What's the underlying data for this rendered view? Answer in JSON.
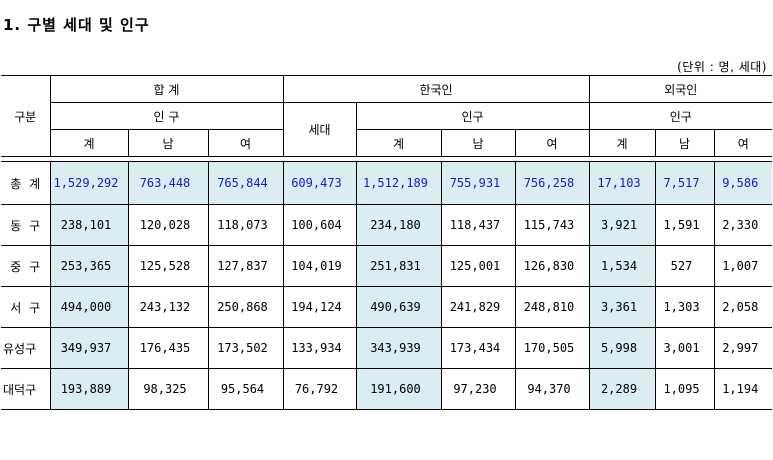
{
  "title": "1. 구별 세대 및 인구",
  "unit": "(단위 : 명, 세대)",
  "table": {
    "corner": "구분",
    "group_total": "합    계",
    "group_korean": "한국인",
    "group_foreign": "외국인",
    "pop_total": "인    구",
    "pop_korean": "인구",
    "pop_foreign": "인구",
    "households": "세대",
    "sub": [
      "계",
      "남",
      "여",
      "계",
      "남",
      "여",
      "계",
      "남",
      "여"
    ],
    "rows": [
      {
        "name": "총  계",
        "values": [
          "1,529,292",
          "763,448",
          "765,844",
          "609,473",
          "1,512,189",
          "755,931",
          "756,258",
          "17,103",
          "7,517",
          "9,586"
        ]
      },
      {
        "name": "동  구",
        "values": [
          "238,101",
          "120,028",
          "118,073",
          "100,604",
          "234,180",
          "118,437",
          "115,743",
          "3,921",
          "1,591",
          "2,330"
        ]
      },
      {
        "name": "중  구",
        "values": [
          "253,365",
          "125,528",
          "127,837",
          "104,019",
          "251,831",
          "125,001",
          "126,830",
          "1,534",
          "527",
          "1,007"
        ]
      },
      {
        "name": "서  구",
        "values": [
          "494,000",
          "243,132",
          "250,868",
          "194,124",
          "490,639",
          "241,829",
          "248,810",
          "3,361",
          "1,303",
          "2,058"
        ]
      },
      {
        "name": "유성구",
        "values": [
          "349,937",
          "176,435",
          "173,502",
          "133,934",
          "343,939",
          "173,434",
          "170,505",
          "5,998",
          "3,001",
          "2,997"
        ]
      },
      {
        "name": "대덕구",
        "values": [
          "193,889",
          "98,325",
          "95,564",
          "76,792",
          "191,600",
          "97,230",
          "94,370",
          "2,289",
          "1,095",
          "1,194"
        ]
      }
    ]
  },
  "colors": {
    "highlight": "#d9edf3",
    "total_text": "#1a1ad0"
  }
}
